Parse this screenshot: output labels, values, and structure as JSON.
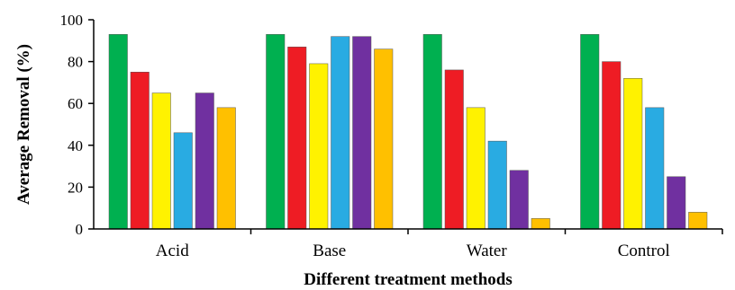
{
  "chart_data": {
    "type": "bar",
    "xlabel": "Different treatment methods",
    "ylabel": "Average Removal (%)",
    "ylim": [
      0,
      100
    ],
    "yticks": [
      "0",
      "20",
      "40",
      "60",
      "80",
      "100"
    ],
    "categories": [
      "Acid",
      "Base",
      "Water",
      "Control"
    ],
    "grid": false,
    "legend": "none",
    "series": [
      {
        "color": "#00b050",
        "values": [
          93,
          93,
          93,
          93
        ]
      },
      {
        "color": "#ee1c24",
        "values": [
          75,
          87,
          76,
          80
        ]
      },
      {
        "color": "#fff200",
        "values": [
          65,
          79,
          58,
          72
        ]
      },
      {
        "color": "#29abe2",
        "values": [
          46,
          92,
          42,
          58
        ]
      },
      {
        "color": "#7030a0",
        "values": [
          65,
          92,
          28,
          25
        ]
      },
      {
        "color": "#ffc000",
        "values": [
          58,
          86,
          5,
          8
        ]
      }
    ]
  }
}
